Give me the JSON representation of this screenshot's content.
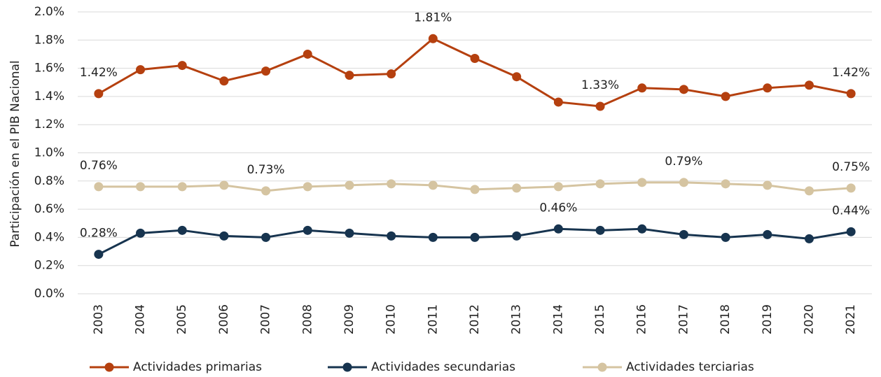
{
  "chart_data": {
    "type": "line",
    "y_axis_label": "Participación en el PIB Nacional",
    "categories": [
      "2003",
      "2004",
      "2005",
      "2006",
      "2007",
      "2008",
      "2009",
      "2010",
      "2011",
      "2012",
      "2013",
      "2014",
      "2015",
      "2016",
      "2017",
      "2018",
      "2019",
      "2020",
      "2021"
    ],
    "series": [
      {
        "name": "Actividades primarias",
        "color": "#b5400f",
        "values": [
          1.42,
          1.59,
          1.62,
          1.51,
          1.58,
          1.7,
          1.55,
          1.56,
          1.81,
          1.67,
          1.54,
          1.36,
          1.33,
          1.46,
          1.45,
          1.4,
          1.46,
          1.48,
          1.42
        ],
        "value_labels": [
          "1.42%",
          null,
          null,
          null,
          null,
          null,
          null,
          null,
          "1.81%",
          null,
          null,
          null,
          "1.33%",
          null,
          null,
          null,
          null,
          null,
          "1.42%"
        ]
      },
      {
        "name": "Actividades secundarias",
        "color": "#17344f",
        "values": [
          0.28,
          0.43,
          0.45,
          0.41,
          0.4,
          0.45,
          0.43,
          0.41,
          0.4,
          0.4,
          0.41,
          0.46,
          0.45,
          0.46,
          0.42,
          0.4,
          0.42,
          0.39,
          0.44
        ],
        "value_labels": [
          "0.28%",
          null,
          null,
          null,
          null,
          null,
          null,
          null,
          null,
          null,
          null,
          "0.46%",
          null,
          null,
          null,
          null,
          null,
          null,
          "0.44%"
        ]
      },
      {
        "name": "Actividades terciarias",
        "color": "#d5c4a1",
        "values": [
          0.76,
          0.76,
          0.76,
          0.77,
          0.73,
          0.76,
          0.77,
          0.78,
          0.77,
          0.74,
          0.75,
          0.76,
          0.78,
          0.79,
          0.79,
          0.78,
          0.77,
          0.73,
          0.75
        ],
        "value_labels": [
          "0.76%",
          null,
          null,
          null,
          "0.73%",
          null,
          null,
          null,
          null,
          null,
          null,
          null,
          null,
          null,
          "0.79%",
          null,
          null,
          null,
          "0.75%"
        ]
      }
    ],
    "ylim": [
      0,
      2.0
    ],
    "yticks": [
      {
        "value": 0,
        "label": "0.0%"
      },
      {
        "value": 0.2,
        "label": "0.2%"
      },
      {
        "value": 0.4,
        "label": "0.4%"
      },
      {
        "value": 0.6,
        "label": "0.6%"
      },
      {
        "value": 0.8,
        "label": "0.8%"
      },
      {
        "value": 1.0,
        "label": "1.0%"
      },
      {
        "value": 1.2,
        "label": "1.2%"
      },
      {
        "value": 1.4,
        "label": "1.4%"
      },
      {
        "value": 1.6,
        "label": "1.6%"
      },
      {
        "value": 1.8,
        "label": "1.8%"
      },
      {
        "value": 2.0,
        "label": "2.0%"
      }
    ],
    "grid": true,
    "legend": "bottom"
  }
}
